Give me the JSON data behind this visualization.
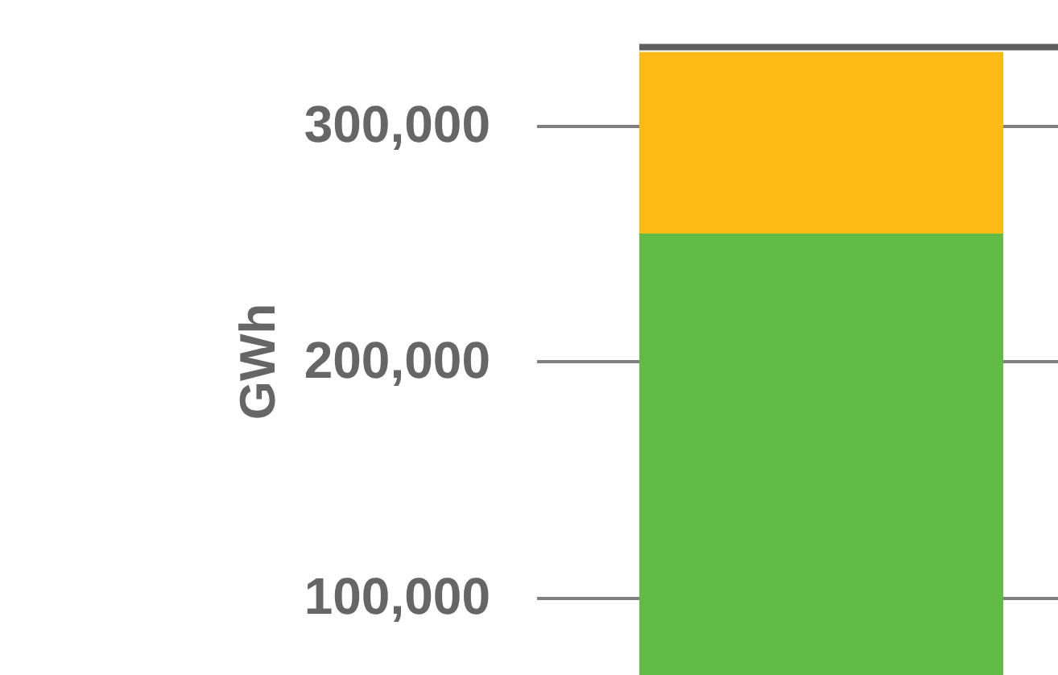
{
  "chart_data": {
    "type": "bar",
    "stacked": true,
    "ylabel": "GWh",
    "categories": [
      null
    ],
    "series": [
      {
        "color": "#62bb46",
        "values": [
          254000
        ]
      },
      {
        "color": "#fbba16",
        "values": [
          77000
        ]
      }
    ],
    "ylim": [
      67000,
      353000
    ],
    "yticks": [
      {
        "value": 100000,
        "label": "100,000"
      },
      {
        "value": 200000,
        "label": "200,000"
      },
      {
        "value": 300000,
        "label": "300,000"
      }
    ],
    "grid": "y",
    "tick_labels": "y",
    "ref_lines": [
      {
        "axis": "y",
        "value": 333000,
        "color": "#5f5f5f"
      }
    ]
  }
}
